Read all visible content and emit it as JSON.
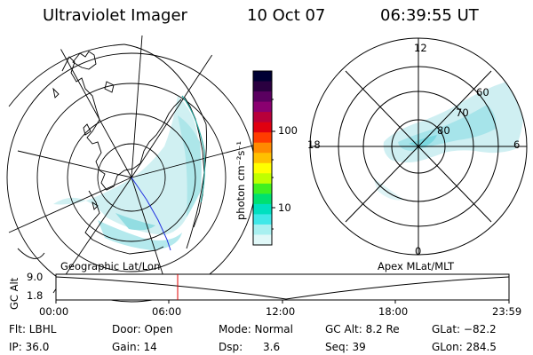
{
  "header": {
    "instrument": "Ultraviolet Imager",
    "date": "10 Oct 07",
    "time": "06:39:55 UT"
  },
  "left_panel": {
    "label": "Geographic Lat/Lon"
  },
  "right_panel": {
    "label": "Apex MLat/MLT",
    "mlt_labels": {
      "top": "12",
      "left": "18",
      "right": "6",
      "bottom": "0"
    },
    "lat_labels": [
      "60",
      "70",
      "80"
    ]
  },
  "colorbar": {
    "unit_label": "photon cm⁻²s⁻¹",
    "ticks": [
      "100",
      "10"
    ],
    "colors": [
      "#000033",
      "#2a0040",
      "#5a0060",
      "#8a0070",
      "#b8003a",
      "#e00010",
      "#ff3c00",
      "#ff8a00",
      "#ffc000",
      "#ffff00",
      "#c0ff00",
      "#40f020",
      "#00e070",
      "#00e0c0",
      "#40e8e8",
      "#a8f0f0",
      "#e0f8f8"
    ]
  },
  "altitude_plot": {
    "y_axis_label": "GC Alt",
    "y_ticks": [
      "9.0",
      "1.8"
    ],
    "x_ticks": [
      "00:00",
      "06:00",
      "12:00",
      "18:00",
      "23:59"
    ]
  },
  "info": {
    "flt": "Flt: LBHL",
    "ip": "IP: 36.0",
    "door": "Door: Open",
    "gain": "Gain: 14",
    "mode": "Mode: Normal",
    "dsp": "Dsp:      3.6",
    "gc_alt": "GC Alt: 8.2 Re",
    "seq": "Seq: 39",
    "glat": "GLat: −82.2",
    "glon": "GLon: 284.5"
  }
}
